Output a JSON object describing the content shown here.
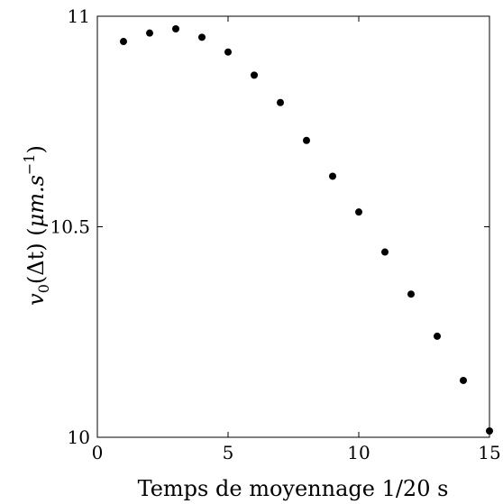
{
  "chart_data": {
    "type": "scatter",
    "title": "",
    "xlabel": "Temps de moyennage 1/20 s",
    "ylabel": "v0(Δt) (μm.s−1)",
    "ylabel_parts": {
      "base": "v",
      "sub": "0",
      "arg": "(Δt) (",
      "unit": "μm.s",
      "sup": "−1",
      "close": ")"
    },
    "xlim": [
      0,
      15
    ],
    "ylim": [
      10,
      11
    ],
    "xticks": [
      0,
      5,
      10,
      15
    ],
    "xtick_labels": [
      "0",
      "5",
      "10",
      "15"
    ],
    "yticks": [
      10,
      10.5,
      11
    ],
    "ytick_labels": [
      "10",
      "10.5",
      "11"
    ],
    "grid": false,
    "marker_color": "#000000",
    "series": [
      {
        "x": [
          1,
          2,
          3,
          4,
          5,
          6,
          7,
          8,
          9,
          10,
          11,
          12,
          13,
          14,
          15
        ],
        "y": [
          10.94,
          10.96,
          10.97,
          10.95,
          10.915,
          10.86,
          10.795,
          10.705,
          10.62,
          10.535,
          10.44,
          10.34,
          10.24,
          10.135,
          10.015
        ]
      }
    ]
  }
}
